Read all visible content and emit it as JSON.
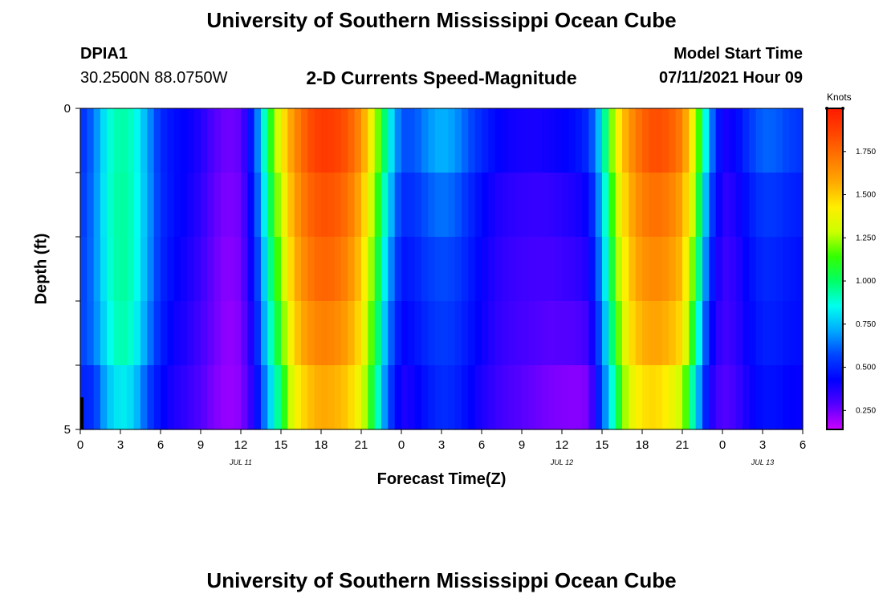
{
  "page": {
    "title_top": "University of Southern Mississippi Ocean Cube",
    "title_bottom": "University of Southern Mississippi Ocean Cube"
  },
  "header": {
    "station_id": "DPIA1",
    "coordinates": "30.2500N  88.0750W",
    "subtitle": "2-D Currents Speed-Magnitude",
    "model_label": "Model Start Time",
    "model_time": "07/11/2021 Hour 09"
  },
  "colorbar": {
    "unit_label": "Knots",
    "tick_values": [
      0.25,
      0.5,
      0.75,
      1.0,
      1.25,
      1.5,
      1.75
    ],
    "tick_labels": [
      "0.250",
      "0.500",
      "0.750",
      "1.000",
      "1.250",
      "1.500",
      "1.750"
    ],
    "min": 0.14,
    "max": 2.0,
    "palette": [
      "#cc00ff",
      "#5500ff",
      "#0000ff",
      "#0044ff",
      "#00aaff",
      "#00ffee",
      "#00ff66",
      "#33ff00",
      "#ccff00",
      "#ffee00",
      "#ffaa00",
      "#ff7700",
      "#ff4400",
      "#ff1a00"
    ]
  },
  "chart_data": {
    "type": "heatmap",
    "title": "2-D Currents Speed-Magnitude",
    "xlabel": "Forecast Time(Z)",
    "ylabel": "Depth (ft)",
    "x_range": [
      0,
      54
    ],
    "y_range": [
      0,
      5
    ],
    "x_ticks": [
      0,
      3,
      6,
      9,
      12,
      15,
      18,
      21,
      24,
      27,
      30,
      33,
      36,
      39,
      42,
      45,
      48,
      51,
      54
    ],
    "x_tick_labels": [
      "0",
      "3",
      "6",
      "9",
      "12",
      "15",
      "18",
      "21",
      "0",
      "3",
      "6",
      "9",
      "12",
      "15",
      "18",
      "21",
      "0",
      "3",
      "6"
    ],
    "y_ticks": [
      0,
      1,
      2,
      3,
      4,
      5
    ],
    "y_tick_labels": [
      "0",
      "",
      "",
      "",
      "",
      "5"
    ],
    "date_labels": [
      {
        "hour": 12,
        "label": "JUL 11"
      },
      {
        "hour": 36,
        "label": "JUL 12"
      },
      {
        "hour": 51,
        "label": "JUL 13"
      }
    ],
    "depth_layers_ft": [
      0.5,
      1.5,
      2.5,
      3.5,
      4.5
    ],
    "speed_knots_by_hour": [
      [
        0.5,
        0.52,
        0.54,
        0.56,
        0.55,
        0.45
      ],
      [
        0.62,
        0.64,
        0.64,
        0.64,
        0.62,
        0.42
      ],
      [
        0.85,
        0.87,
        0.87,
        0.86,
        0.8,
        0.7
      ],
      [
        0.93,
        0.95,
        0.95,
        0.95,
        0.92,
        0.75
      ],
      [
        0.88,
        0.9,
        0.9,
        0.9,
        0.85,
        0.72
      ],
      [
        0.7,
        0.72,
        0.72,
        0.7,
        0.65,
        0.5
      ],
      [
        0.5,
        0.52,
        0.52,
        0.5,
        0.48,
        0.4
      ],
      [
        0.45,
        0.45,
        0.45,
        0.42,
        0.4,
        0.36
      ],
      [
        0.42,
        0.42,
        0.4,
        0.38,
        0.36,
        0.32
      ],
      [
        0.38,
        0.36,
        0.34,
        0.32,
        0.3,
        0.28
      ],
      [
        0.3,
        0.28,
        0.26,
        0.26,
        0.25,
        0.22
      ],
      [
        0.25,
        0.24,
        0.22,
        0.21,
        0.2,
        0.2
      ],
      [
        0.28,
        0.26,
        0.25,
        0.24,
        0.22,
        0.22
      ],
      [
        0.55,
        0.52,
        0.48,
        0.45,
        0.4,
        0.36
      ],
      [
        1.05,
        0.98,
        0.9,
        0.85,
        0.78,
        0.66
      ],
      [
        1.45,
        1.35,
        1.28,
        1.2,
        1.1,
        0.95
      ],
      [
        1.68,
        1.62,
        1.58,
        1.52,
        1.45,
        1.32
      ],
      [
        1.85,
        1.78,
        1.72,
        1.68,
        1.58,
        1.45
      ],
      [
        1.95,
        1.85,
        1.8,
        1.74,
        1.64,
        1.52
      ],
      [
        1.92,
        1.83,
        1.78,
        1.72,
        1.62,
        1.5
      ],
      [
        1.85,
        1.76,
        1.7,
        1.64,
        1.56,
        1.45
      ],
      [
        1.68,
        1.6,
        1.52,
        1.48,
        1.4,
        1.3
      ],
      [
        1.35,
        1.25,
        1.18,
        1.12,
        1.05,
        0.95
      ],
      [
        0.92,
        0.85,
        0.75,
        0.7,
        0.62,
        0.55
      ],
      [
        0.62,
        0.55,
        0.48,
        0.45,
        0.4,
        0.35
      ],
      [
        0.62,
        0.56,
        0.5,
        0.48,
        0.44,
        0.38
      ],
      [
        0.72,
        0.64,
        0.56,
        0.54,
        0.5,
        0.45
      ],
      [
        0.78,
        0.68,
        0.6,
        0.56,
        0.54,
        0.5
      ],
      [
        0.74,
        0.64,
        0.58,
        0.54,
        0.52,
        0.48
      ],
      [
        0.64,
        0.54,
        0.5,
        0.48,
        0.46,
        0.42
      ],
      [
        0.55,
        0.46,
        0.42,
        0.42,
        0.4,
        0.36
      ],
      [
        0.48,
        0.4,
        0.37,
        0.36,
        0.35,
        0.32
      ],
      [
        0.44,
        0.37,
        0.34,
        0.33,
        0.32,
        0.28
      ],
      [
        0.42,
        0.36,
        0.33,
        0.32,
        0.3,
        0.26
      ],
      [
        0.42,
        0.35,
        0.32,
        0.31,
        0.28,
        0.24
      ],
      [
        0.44,
        0.36,
        0.32,
        0.3,
        0.26,
        0.22
      ],
      [
        0.46,
        0.38,
        0.34,
        0.31,
        0.26,
        0.2
      ],
      [
        0.5,
        0.4,
        0.36,
        0.32,
        0.26,
        0.18
      ],
      [
        0.58,
        0.45,
        0.4,
        0.36,
        0.28,
        0.2
      ],
      [
        0.85,
        0.78,
        0.72,
        0.68,
        0.6,
        0.55
      ],
      [
        1.42,
        1.3,
        1.22,
        1.15,
        1.05,
        0.9
      ],
      [
        1.65,
        1.58,
        1.52,
        1.48,
        1.4,
        1.28
      ],
      [
        1.82,
        1.72,
        1.66,
        1.6,
        1.52,
        1.38
      ],
      [
        1.9,
        1.78,
        1.7,
        1.64,
        1.55,
        1.4
      ],
      [
        1.86,
        1.74,
        1.66,
        1.6,
        1.5,
        1.3
      ],
      [
        1.75,
        1.62,
        1.56,
        1.5,
        1.42,
        1.15
      ],
      [
        1.35,
        1.25,
        1.15,
        1.05,
        0.9,
        0.72
      ],
      [
        0.75,
        0.65,
        0.55,
        0.5,
        0.42,
        0.36
      ],
      [
        0.4,
        0.36,
        0.33,
        0.32,
        0.3,
        0.26
      ],
      [
        0.45,
        0.4,
        0.36,
        0.35,
        0.34,
        0.3
      ],
      [
        0.58,
        0.5,
        0.45,
        0.44,
        0.42,
        0.38
      ],
      [
        0.66,
        0.57,
        0.52,
        0.5,
        0.48,
        0.44
      ],
      [
        0.65,
        0.56,
        0.51,
        0.49,
        0.48,
        0.43
      ],
      [
        0.6,
        0.52,
        0.48,
        0.47,
        0.45,
        0.4
      ],
      [
        0.56,
        0.5,
        0.46,
        0.45,
        0.44,
        0.4
      ]
    ]
  }
}
